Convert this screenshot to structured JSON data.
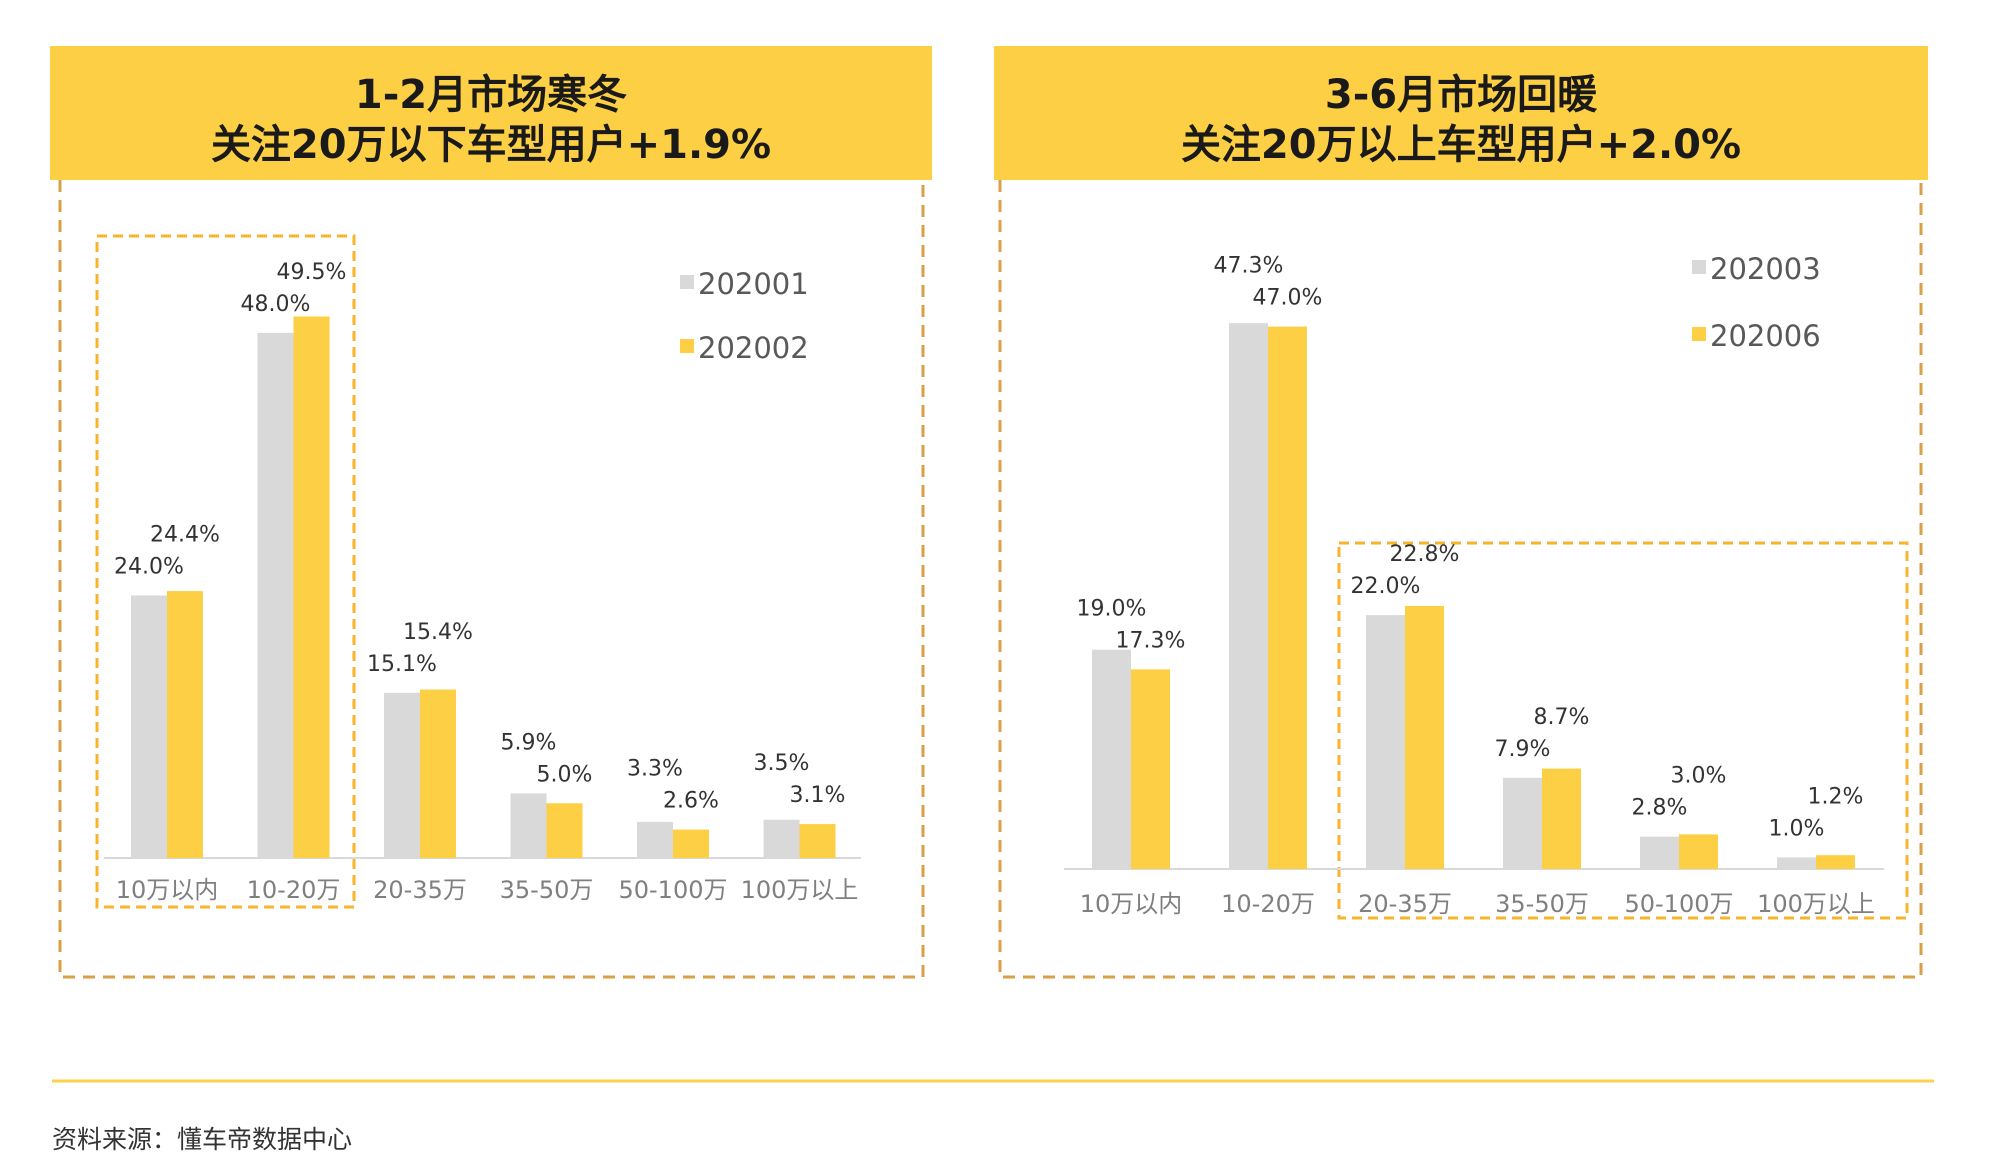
{
  "colors": {
    "series_a": "#D9D9D9",
    "series_b": "#FCCF45",
    "header": "#FCCF45",
    "outer_dash": "#D9A049",
    "inner_dash": "#F7B52E",
    "footer_line": "#FAD24C"
  },
  "chart_data": [
    {
      "type": "bar",
      "title": [
        "1-2月市场寒冬",
        "关注20万以下车型用户+1.9%"
      ],
      "categories": [
        "10万以内",
        "10-20万",
        "20-35万",
        "35-50万",
        "50-100万",
        "100万以上"
      ],
      "series": [
        {
          "name": "202001",
          "values": [
            24.0,
            48.0,
            15.1,
            5.9,
            3.3,
            3.5
          ],
          "labels": [
            "24.0%",
            "48.0%",
            "15.1%",
            "5.9%",
            "3.3%",
            "3.5%"
          ]
        },
        {
          "name": "202002",
          "values": [
            24.4,
            49.5,
            15.4,
            5.0,
            2.6,
            3.1
          ],
          "labels": [
            "24.4%",
            "49.5%",
            "15.4%",
            "5.0%",
            "2.6%",
            "3.1%"
          ]
        }
      ],
      "highlight_categories": [
        "10万以内",
        "10-20万"
      ],
      "legend": "top-right",
      "grid": false,
      "ylim": [
        0,
        50
      ]
    },
    {
      "type": "bar",
      "title": [
        "3-6月市场回暖",
        "关注20万以上车型用户+2.0%"
      ],
      "categories": [
        "10万以内",
        "10-20万",
        "20-35万",
        "35-50万",
        "50-100万",
        "100万以上"
      ],
      "series": [
        {
          "name": "202003",
          "values": [
            19.0,
            47.3,
            22.0,
            7.9,
            2.8,
            1.0
          ],
          "labels": [
            "19.0%",
            "47.3%",
            "22.0%",
            "7.9%",
            "2.8%",
            "1.0%"
          ]
        },
        {
          "name": "202006",
          "values": [
            17.3,
            47.0,
            22.8,
            8.7,
            3.0,
            1.2
          ],
          "labels": [
            "17.3%",
            "47.0%",
            "22.8%",
            "8.7%",
            "3.0%",
            "1.2%"
          ]
        }
      ],
      "highlight_categories": [
        "20-35万",
        "35-50万",
        "50-100万",
        "100万以上"
      ],
      "legend": "top-right",
      "grid": false,
      "ylim": [
        0,
        50
      ]
    }
  ],
  "footer": {
    "source": "资料来源：懂车帝数据中心"
  }
}
